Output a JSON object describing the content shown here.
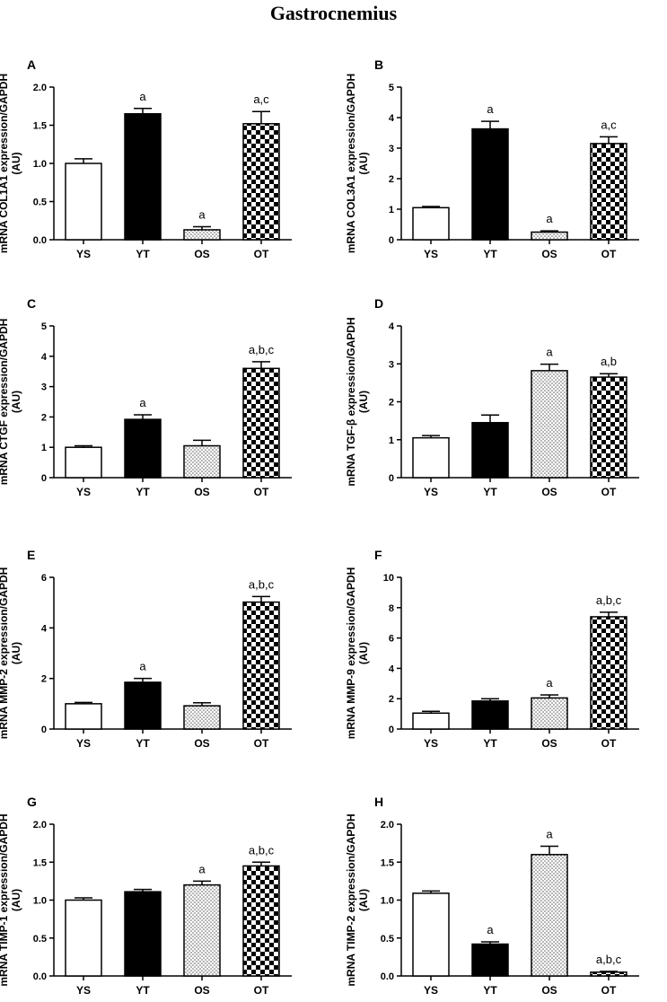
{
  "figure": {
    "title": "Gastrocnemius"
  },
  "chart_data": [
    {
      "type": "bar",
      "panel": "A",
      "categories": [
        "YS",
        "YT",
        "OS",
        "OT"
      ],
      "values": [
        1.0,
        1.65,
        0.13,
        1.52
      ],
      "errors": [
        0.06,
        0.07,
        0.04,
        0.16
      ],
      "annotations": [
        "",
        "a",
        "a",
        "a,c"
      ],
      "ylabel": [
        "mRNA COL1A1 expression/GAPDH",
        "(AU)"
      ],
      "ylim": [
        0,
        2.0
      ],
      "yticks": [
        "0.0",
        "0.5",
        "1.0",
        "1.5",
        "2.0"
      ],
      "grid": false
    },
    {
      "type": "bar",
      "panel": "B",
      "categories": [
        "YS",
        "YT",
        "OS",
        "OT"
      ],
      "values": [
        1.05,
        3.63,
        0.25,
        3.15
      ],
      "errors": [
        0.04,
        0.25,
        0.04,
        0.22
      ],
      "annotations": [
        "",
        "a",
        "a",
        "a,c"
      ],
      "ylabel": [
        "mRNA COL3A1 expression/GAPDH",
        "(AU)"
      ],
      "ylim": [
        0,
        5
      ],
      "yticks": [
        "0",
        "1",
        "2",
        "3",
        "4",
        "5"
      ],
      "grid": false
    },
    {
      "type": "bar",
      "panel": "C",
      "categories": [
        "YS",
        "YT",
        "OS",
        "OT"
      ],
      "values": [
        1.0,
        1.92,
        1.05,
        3.6
      ],
      "errors": [
        0.05,
        0.15,
        0.18,
        0.22
      ],
      "annotations": [
        "",
        "a",
        "",
        "a,b,c"
      ],
      "ylabel": [
        "mRNA CTGF expression/GAPDH",
        "(AU)"
      ],
      "ylim": [
        0,
        5
      ],
      "yticks": [
        "0",
        "1",
        "2",
        "3",
        "4",
        "5"
      ],
      "grid": false
    },
    {
      "type": "bar",
      "panel": "D",
      "categories": [
        "YS",
        "YT",
        "OS",
        "OT"
      ],
      "values": [
        1.05,
        1.45,
        2.82,
        2.65
      ],
      "errors": [
        0.06,
        0.2,
        0.17,
        0.09
      ],
      "annotations": [
        "",
        "",
        "a",
        "a,b"
      ],
      "ylabel": [
        "mRNA TGF-β expression/GAPDH",
        "(AU)"
      ],
      "ylim": [
        0,
        4
      ],
      "yticks": [
        "0",
        "1",
        "2",
        "3",
        "4"
      ],
      "grid": false
    },
    {
      "type": "bar",
      "panel": "E",
      "categories": [
        "YS",
        "YT",
        "OS",
        "OT"
      ],
      "values": [
        1.0,
        1.85,
        0.92,
        5.02
      ],
      "errors": [
        0.05,
        0.15,
        0.12,
        0.22
      ],
      "annotations": [
        "",
        "a",
        "",
        "a,b,c"
      ],
      "ylabel": [
        "mRNA MMP-2 expression/GAPDH",
        "(AU)"
      ],
      "ylim": [
        0,
        6
      ],
      "yticks": [
        "0",
        "2",
        "4",
        "6"
      ],
      "grid": false
    },
    {
      "type": "bar",
      "panel": "F",
      "categories": [
        "YS",
        "YT",
        "OS",
        "OT"
      ],
      "values": [
        1.05,
        1.85,
        2.05,
        7.4
      ],
      "errors": [
        0.12,
        0.15,
        0.2,
        0.3
      ],
      "annotations": [
        "",
        "",
        "a",
        "a,b,c"
      ],
      "ylabel": [
        "mRNA MMP-9 expression/GAPDH",
        "(AU)"
      ],
      "ylim": [
        0,
        10
      ],
      "yticks": [
        "0",
        "2",
        "4",
        "6",
        "8",
        "10"
      ],
      "grid": false
    },
    {
      "type": "bar",
      "panel": "G",
      "categories": [
        "YS",
        "YT",
        "OS",
        "OT"
      ],
      "values": [
        1.0,
        1.11,
        1.2,
        1.45
      ],
      "errors": [
        0.03,
        0.03,
        0.05,
        0.05
      ],
      "annotations": [
        "",
        "",
        "a",
        "a,b,c"
      ],
      "ylabel": [
        "mRNA TIMP-1 expression/GAPDH",
        "(AU)"
      ],
      "ylim": [
        0,
        2.0
      ],
      "yticks": [
        "0.0",
        "0.5",
        "1.0",
        "1.5",
        "2.0"
      ],
      "grid": false
    },
    {
      "type": "bar",
      "panel": "H",
      "categories": [
        "YS",
        "YT",
        "OS",
        "OT"
      ],
      "values": [
        1.09,
        0.42,
        1.6,
        0.05
      ],
      "errors": [
        0.03,
        0.03,
        0.11,
        0.01
      ],
      "annotations": [
        "",
        "a",
        "a",
        "a,b,c"
      ],
      "ylabel": [
        "mRNA TIMP-2 expression/GAPDH",
        "(AU)"
      ],
      "ylim": [
        0,
        2.0
      ],
      "yticks": [
        "0.0",
        "0.5",
        "1.0",
        "1.5",
        "2.0"
      ],
      "grid": false
    }
  ],
  "fills": [
    "#ffffff",
    "#000000",
    "dots",
    "checker"
  ]
}
